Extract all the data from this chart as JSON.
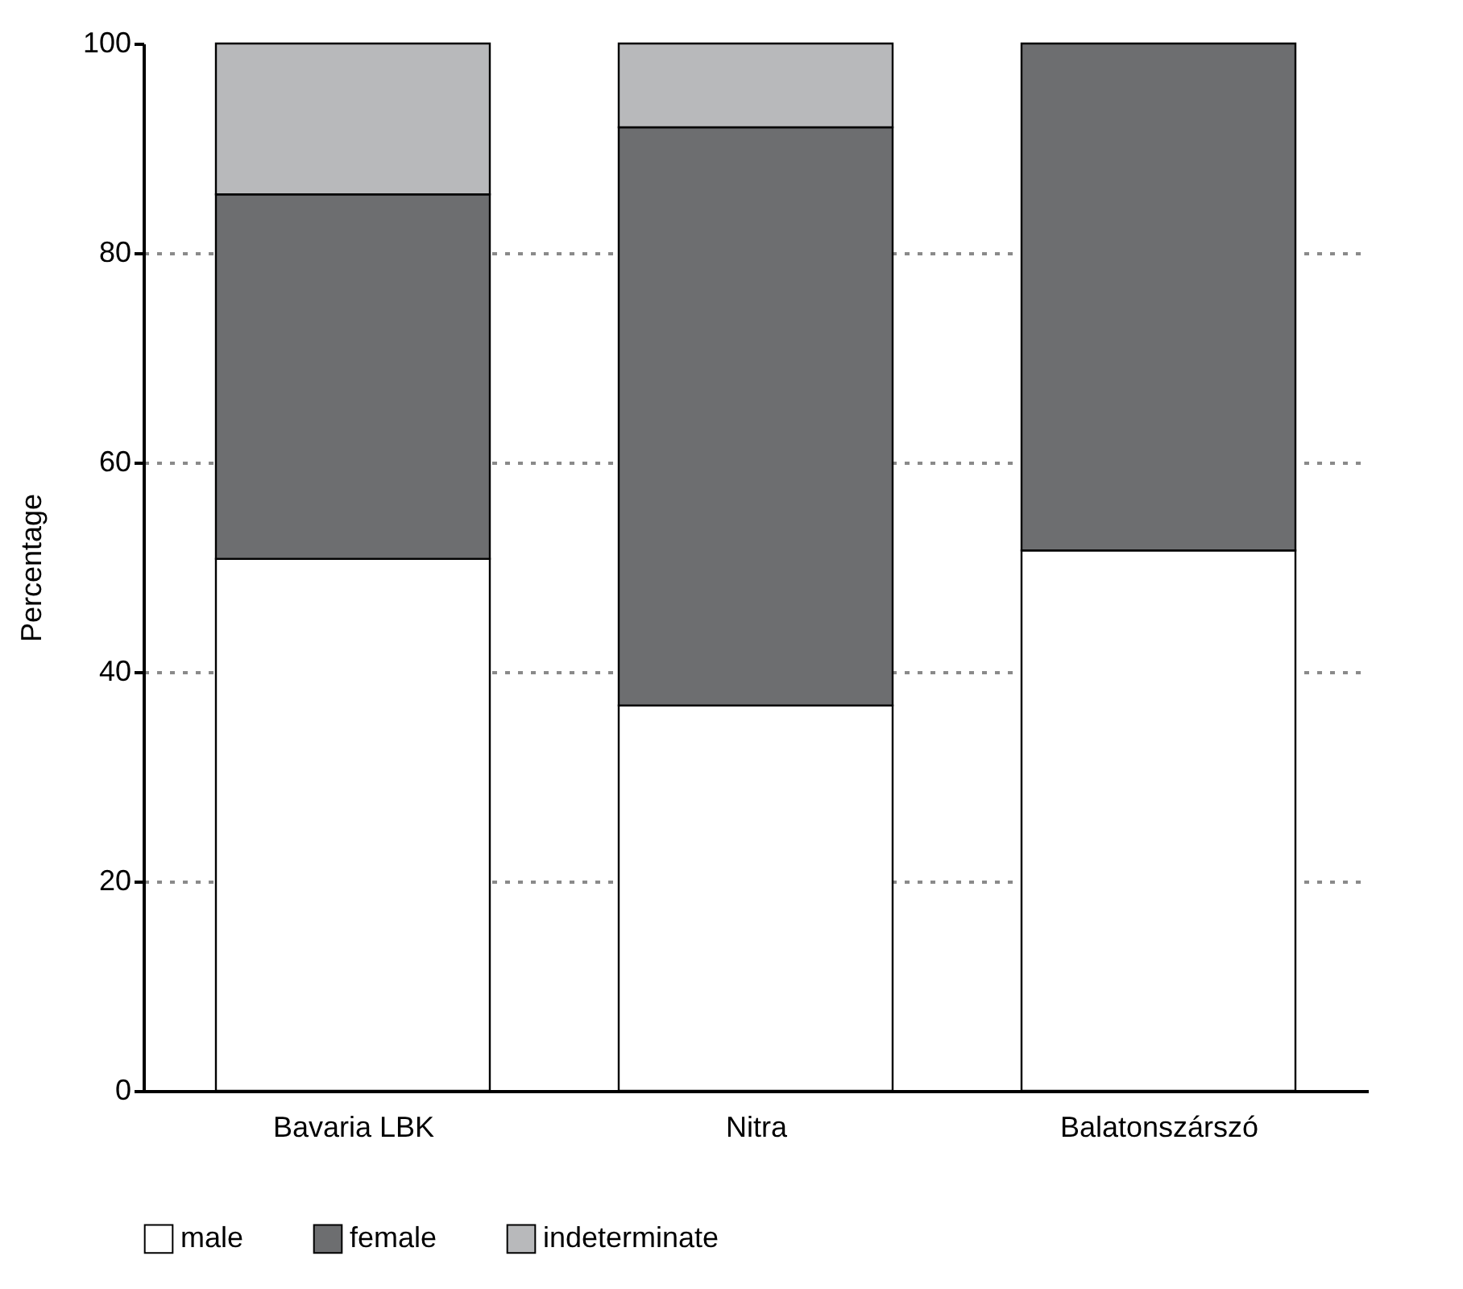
{
  "chart_data": {
    "type": "bar",
    "stacked": true,
    "ylabel": "Percentage",
    "categories": [
      "Bavaria LBK",
      "Nitra",
      "Balatonszárszó"
    ],
    "series": [
      {
        "name": "male",
        "color": "#ffffff",
        "values": [
          50.8,
          36.8,
          51.6
        ]
      },
      {
        "name": "female",
        "color": "#6d6e70",
        "values": [
          34.8,
          55.2,
          48.4
        ]
      },
      {
        "name": "indeterminate",
        "color": "#b8b9bb",
        "values": [
          14.4,
          8.0,
          null
        ]
      }
    ],
    "ylim": [
      0,
      100
    ],
    "yticks": [
      0,
      20,
      40,
      60,
      80,
      100
    ],
    "grid": "y",
    "legend": "bottom"
  }
}
